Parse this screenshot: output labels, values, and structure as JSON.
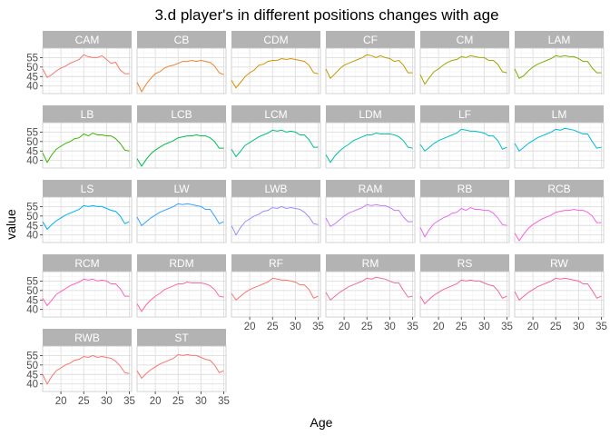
{
  "chart_data": {
    "type": "line",
    "title": "3.d player's in different positions changes with age",
    "xlabel": "Age",
    "ylabel": "value",
    "xlim": [
      16,
      35.5
    ],
    "ylim": [
      36,
      60
    ],
    "x_ticks": [
      20,
      25,
      30,
      35
    ],
    "y_ticks": [
      40,
      45,
      50,
      55
    ],
    "grid": true,
    "x": [
      16,
      17,
      18,
      19,
      20,
      21,
      22,
      23,
      24,
      25,
      26,
      27,
      28,
      29,
      30,
      31,
      32,
      33,
      34,
      35
    ],
    "series": [
      {
        "name": "CAM",
        "color": "#F8766D",
        "values": [
          49,
          44.5,
          46,
          48,
          49.5,
          50.5,
          52,
          53,
          54,
          56.5,
          55.5,
          55,
          55,
          56,
          54,
          52,
          52.5,
          48.5,
          46.5,
          46.5
        ]
      },
      {
        "name": "CB",
        "color": "#EA8331",
        "values": [
          42,
          37,
          41,
          44,
          46.5,
          47.5,
          49.5,
          50.5,
          51,
          52,
          53,
          53,
          53.5,
          53,
          53.5,
          53,
          52.5,
          50.5,
          47,
          46
        ]
      },
      {
        "name": "CDM",
        "color": "#D89000",
        "values": [
          43,
          39,
          42,
          45,
          47,
          48.5,
          51,
          51.5,
          53,
          53.5,
          53.5,
          54.5,
          54,
          54.5,
          54,
          53.5,
          53,
          51,
          47,
          46.5
        ]
      },
      {
        "name": "CF",
        "color": "#C09B00",
        "values": [
          49,
          44,
          46.5,
          49,
          51,
          52,
          53,
          54,
          55,
          56.5,
          56,
          55,
          56,
          55,
          54.5,
          53,
          53.5,
          51,
          47,
          47
        ]
      },
      {
        "name": "CM",
        "color": "#A3A500",
        "values": [
          46,
          41,
          44.5,
          47.5,
          49,
          51,
          52.5,
          53.5,
          54,
          55.5,
          55,
          56,
          55.5,
          55,
          55,
          53.5,
          53.5,
          51.5,
          47.5,
          47
        ]
      },
      {
        "name": "LAM",
        "color": "#7CAE00",
        "values": [
          49,
          44,
          45.5,
          48,
          50,
          51.5,
          52.5,
          53.5,
          54.5,
          56,
          55.5,
          56,
          55.5,
          55.5,
          54.5,
          53,
          53,
          49.5,
          47,
          47
        ]
      },
      {
        "name": "LB",
        "color": "#39B600",
        "values": [
          44,
          39,
          43,
          46,
          47.5,
          49,
          50,
          51.5,
          52,
          54,
          53,
          54.5,
          53.5,
          53.5,
          53,
          53,
          51.5,
          49,
          45.5,
          45
        ]
      },
      {
        "name": "LCB",
        "color": "#00BB4E",
        "values": [
          41,
          37,
          40.5,
          43.5,
          45.5,
          47,
          48.5,
          49.5,
          50.5,
          52,
          52.5,
          53,
          53,
          53.5,
          53,
          53,
          52,
          50,
          46.5,
          46.5
        ]
      },
      {
        "name": "LCM",
        "color": "#00BF7D",
        "values": [
          46,
          42,
          45,
          48,
          49.5,
          51,
          52.5,
          53.5,
          54.5,
          56,
          55.5,
          56,
          55,
          55.5,
          55,
          53.5,
          53.5,
          51,
          47,
          47
        ]
      },
      {
        "name": "LDM",
        "color": "#00C1A3",
        "values": [
          43,
          39,
          42.5,
          45,
          47,
          48.5,
          50.5,
          51.5,
          52.5,
          53.5,
          53.5,
          54.5,
          54,
          54,
          54,
          53.5,
          52.5,
          50.5,
          47,
          46.5
        ]
      },
      {
        "name": "LF",
        "color": "#00BFC4",
        "values": [
          48.5,
          45,
          47,
          49,
          50.5,
          51.5,
          52.5,
          53.5,
          54.5,
          56.5,
          56,
          55.5,
          55.5,
          55,
          54.5,
          53,
          53,
          50.5,
          46,
          47
        ]
      },
      {
        "name": "LM",
        "color": "#00BAE0",
        "values": [
          49,
          45,
          47,
          49,
          50.5,
          52,
          53,
          54,
          55,
          56.5,
          56,
          57,
          56.5,
          56,
          55,
          54,
          54,
          50,
          46.5,
          47
        ]
      },
      {
        "name": "LS",
        "color": "#00B0F6",
        "values": [
          47,
          43,
          45.5,
          47.5,
          49,
          50.5,
          51.5,
          52.5,
          53.5,
          55.5,
          55,
          55.5,
          55,
          55,
          54,
          53,
          52.5,
          50,
          46,
          47
        ]
      },
      {
        "name": "LW",
        "color": "#35A2FF",
        "values": [
          49.5,
          45,
          47,
          49,
          50.5,
          52,
          53,
          54,
          55,
          56.5,
          56,
          56.5,
          56,
          55.5,
          55,
          53.5,
          53.5,
          50,
          46,
          47
        ]
      },
      {
        "name": "LWB",
        "color": "#9590FF",
        "values": [
          45,
          40,
          44,
          47,
          48.5,
          50,
          51,
          52.5,
          53,
          54.5,
          54,
          55,
          54,
          54.5,
          54,
          53.5,
          52,
          49.5,
          46,
          45.5
        ]
      },
      {
        "name": "RAM",
        "color": "#C77CFF",
        "values": [
          49,
          44.5,
          46,
          48,
          50,
          51.5,
          52.5,
          53.5,
          54.5,
          56,
          55.5,
          56,
          55.5,
          55.5,
          54.5,
          53,
          53,
          49.5,
          47,
          47
        ]
      },
      {
        "name": "RB",
        "color": "#E76BF3",
        "values": [
          44,
          39,
          43,
          46,
          47.5,
          49,
          50,
          51.5,
          52,
          54,
          53,
          54.5,
          53.5,
          53.5,
          53,
          53,
          51.5,
          49,
          45.5,
          45
        ]
      },
      {
        "name": "RCB",
        "color": "#FA62DB",
        "values": [
          41,
          37,
          40.5,
          43.5,
          45.5,
          47,
          48.5,
          49.5,
          50.5,
          52,
          52.5,
          53,
          53,
          53.5,
          53,
          53,
          52,
          50,
          46.5,
          46.5
        ]
      },
      {
        "name": "RCM",
        "color": "#FF62BC",
        "values": [
          46,
          42,
          45,
          48,
          49.5,
          51,
          52.5,
          53.5,
          54.5,
          56,
          55.5,
          56,
          55,
          55.5,
          55,
          53.5,
          53.5,
          51,
          47,
          47
        ]
      },
      {
        "name": "RDM",
        "color": "#FF6A98",
        "values": [
          43,
          39,
          42.5,
          45,
          47,
          48.5,
          50.5,
          51.5,
          52.5,
          53.5,
          53.5,
          54.5,
          54,
          54,
          54,
          53.5,
          52.5,
          50.5,
          47,
          46.5
        ]
      },
      {
        "name": "RF",
        "color": "#F8766D",
        "values": [
          48.5,
          45,
          47,
          49,
          50.5,
          51.5,
          52.5,
          53.5,
          54.5,
          56.5,
          56,
          55.5,
          55.5,
          55,
          54.5,
          53,
          53,
          50.5,
          46,
          47
        ]
      },
      {
        "name": "RM",
        "color": "#EE6FA0",
        "values": [
          49,
          45,
          47,
          49,
          50.5,
          52,
          53,
          54,
          55,
          56.5,
          56,
          57,
          56.5,
          56,
          55,
          54,
          54,
          50,
          46.5,
          47
        ]
      },
      {
        "name": "RS",
        "color": "#F0679F",
        "values": [
          47,
          43,
          45.5,
          47.5,
          49,
          50.5,
          51.5,
          52.5,
          53.5,
          55.5,
          55,
          55.5,
          55,
          55,
          54,
          53,
          52.5,
          50,
          46,
          47
        ]
      },
      {
        "name": "RW",
        "color": "#F564A0",
        "values": [
          49.5,
          45,
          47,
          49,
          50.5,
          52,
          53,
          54,
          55,
          56.5,
          56,
          56.5,
          56,
          55.5,
          55,
          53.5,
          53.5,
          50,
          46,
          47
        ]
      },
      {
        "name": "RWB",
        "color": "#F8766D",
        "values": [
          45,
          40,
          44,
          47,
          48.5,
          50,
          51,
          52.5,
          53,
          54.5,
          54,
          55,
          54,
          54.5,
          54,
          53.5,
          52,
          49.5,
          46,
          45.5
        ]
      },
      {
        "name": "ST",
        "color": "#F8766D",
        "values": [
          47,
          43,
          45.5,
          47.5,
          49,
          50.5,
          51.5,
          52.5,
          53.5,
          55.5,
          55,
          55.5,
          55,
          55,
          54,
          53,
          52.5,
          50,
          46,
          47
        ]
      }
    ]
  }
}
